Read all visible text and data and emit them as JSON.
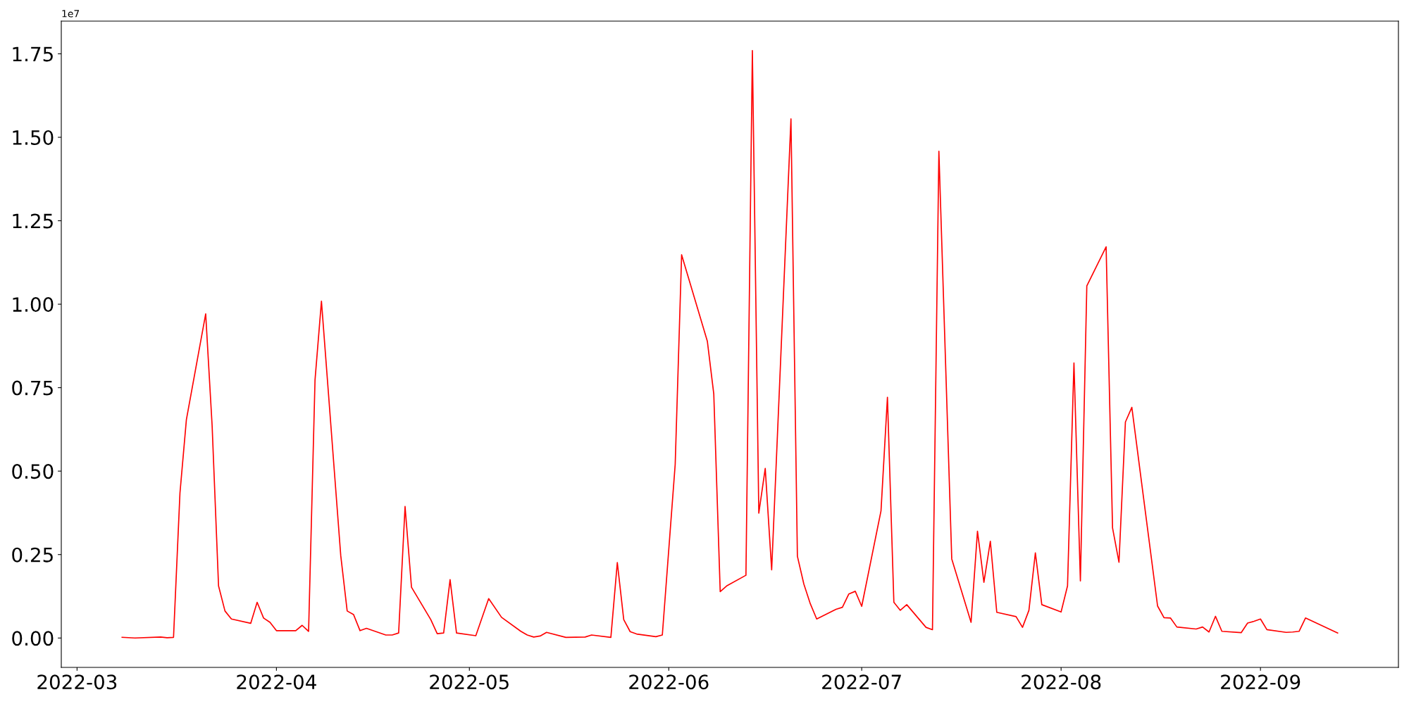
{
  "chart_data": {
    "type": "line",
    "annotations": [
      "1e7"
    ],
    "x": [
      "2022-03-08",
      "2022-03-10",
      "2022-03-14",
      "2022-03-15",
      "2022-03-16",
      "2022-03-17",
      "2022-03-18",
      "2022-03-21",
      "2022-03-22",
      "2022-03-23",
      "2022-03-24",
      "2022-03-25",
      "2022-03-28",
      "2022-03-29",
      "2022-03-30",
      "2022-03-31",
      "2022-04-01",
      "2022-04-04",
      "2022-04-05",
      "2022-04-06",
      "2022-04-07",
      "2022-04-08",
      "2022-04-11",
      "2022-04-12",
      "2022-04-13",
      "2022-04-14",
      "2022-04-15",
      "2022-04-18",
      "2022-04-19",
      "2022-04-20",
      "2022-04-21",
      "2022-04-22",
      "2022-04-25",
      "2022-04-26",
      "2022-04-27",
      "2022-04-28",
      "2022-04-29",
      "2022-05-02",
      "2022-05-04",
      "2022-05-06",
      "2022-05-09",
      "2022-05-10",
      "2022-05-11",
      "2022-05-12",
      "2022-05-13",
      "2022-05-16",
      "2022-05-19",
      "2022-05-20",
      "2022-05-23",
      "2022-05-24",
      "2022-05-25",
      "2022-05-26",
      "2022-05-27",
      "2022-05-30",
      "2022-05-31",
      "2022-06-02",
      "2022-06-03",
      "2022-06-07",
      "2022-06-08",
      "2022-06-09",
      "2022-06-10",
      "2022-06-13",
      "2022-06-14",
      "2022-06-15",
      "2022-06-16",
      "2022-06-17",
      "2022-06-20",
      "2022-06-21",
      "2022-06-22",
      "2022-06-23",
      "2022-06-24",
      "2022-06-27",
      "2022-06-28",
      "2022-06-29",
      "2022-06-30",
      "2022-07-01",
      "2022-07-04",
      "2022-07-05",
      "2022-07-06",
      "2022-07-07",
      "2022-07-08",
      "2022-07-11",
      "2022-07-12",
      "2022-07-13",
      "2022-07-15",
      "2022-07-18",
      "2022-07-19",
      "2022-07-20",
      "2022-07-21",
      "2022-07-22",
      "2022-07-25",
      "2022-07-26",
      "2022-07-27",
      "2022-07-28",
      "2022-07-29",
      "2022-08-01",
      "2022-08-02",
      "2022-08-03",
      "2022-08-04",
      "2022-08-05",
      "2022-08-08",
      "2022-08-09",
      "2022-08-10",
      "2022-08-11",
      "2022-08-12",
      "2022-08-16",
      "2022-08-17",
      "2022-08-18",
      "2022-08-19",
      "2022-08-22",
      "2022-08-23",
      "2022-08-24",
      "2022-08-25",
      "2022-08-26",
      "2022-08-29",
      "2022-08-30",
      "2022-08-31",
      "2022-09-01",
      "2022-09-02",
      "2022-09-05",
      "2022-09-06",
      "2022-09-07",
      "2022-09-08",
      "2022-09-13"
    ],
    "series": [
      {
        "color": "#ff0000",
        "values": [
          0.002,
          0.0,
          0.003,
          0.001,
          0.002,
          0.434,
          0.654,
          0.971,
          0.637,
          0.156,
          0.081,
          0.057,
          0.044,
          0.107,
          0.06,
          0.047,
          0.022,
          0.022,
          0.038,
          0.02,
          0.773,
          1.009,
          0.247,
          0.081,
          0.07,
          0.022,
          0.029,
          0.009,
          0.009,
          0.015,
          0.394,
          0.152,
          0.055,
          0.013,
          0.015,
          0.175,
          0.015,
          0.007,
          0.118,
          0.062,
          0.02,
          0.009,
          0.003,
          0.006,
          0.017,
          0.002,
          0.003,
          0.009,
          0.002,
          0.226,
          0.055,
          0.019,
          0.012,
          0.004,
          0.009,
          0.52,
          1.148,
          0.889,
          0.731,
          0.139,
          0.156,
          0.188,
          1.76,
          0.374,
          0.508,
          0.204,
          1.555,
          0.245,
          0.162,
          0.103,
          0.057,
          0.086,
          0.092,
          0.132,
          0.14,
          0.095,
          0.381,
          0.721,
          0.107,
          0.083,
          0.1,
          0.032,
          0.025,
          1.458,
          0.237,
          0.047,
          0.32,
          0.167,
          0.29,
          0.077,
          0.064,
          0.032,
          0.083,
          0.255,
          0.1,
          0.078,
          0.156,
          0.824,
          0.171,
          1.055,
          1.172,
          0.33,
          0.227,
          0.647,
          0.691,
          0.096,
          0.061,
          0.06,
          0.033,
          0.027,
          0.033,
          0.018,
          0.065,
          0.02,
          0.016,
          0.045,
          0.05,
          0.057,
          0.025,
          0.017,
          0.018,
          0.02,
          0.06,
          0.015
        ]
      }
    ],
    "xlim": [
      "2022-02-26T13:12",
      "2022-09-22T10:48"
    ],
    "xticks": [
      {
        "value": "2022-03-01",
        "label": "2022-03"
      },
      {
        "value": "2022-04-01",
        "label": "2022-04"
      },
      {
        "value": "2022-05-01",
        "label": "2022-05"
      },
      {
        "value": "2022-06-01",
        "label": "2022-06"
      },
      {
        "value": "2022-07-01",
        "label": "2022-07"
      },
      {
        "value": "2022-08-01",
        "label": "2022-08"
      },
      {
        "value": "2022-09-01",
        "label": "2022-09"
      }
    ],
    "ylim": [
      -0.088,
      1.848
    ],
    "yticks": [
      {
        "value": 0,
        "label": "0.00"
      },
      {
        "value": 0.25,
        "label": "0.25"
      },
      {
        "value": 0.5,
        "label": "0.50"
      },
      {
        "value": 0.75,
        "label": "0.75"
      },
      {
        "value": 1.0,
        "label": "1.00"
      },
      {
        "value": 1.25,
        "label": "1.25"
      },
      {
        "value": 1.5,
        "label": "1.50"
      },
      {
        "value": 1.75,
        "label": "1.75"
      }
    ],
    "grid": false,
    "marker": "none",
    "line_style": "solid"
  }
}
